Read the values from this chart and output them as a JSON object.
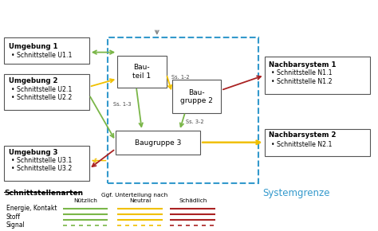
{
  "bg_color": "#ffffff",
  "system_border_color": "#3399cc",
  "systemgrenze_label": "Systemgrenze",
  "systemgrenze_color": "#3399cc",
  "title_legend": "Schnittstellenarten",
  "legend_subtitle": "Ggf. Unterteilung nach",
  "legend_col1": "Nützlich",
  "legend_col2": "Neutral",
  "legend_col3": "Schädlich",
  "legend_rows": [
    "Energie, Kontakt",
    "Stoff",
    "Signal"
  ],
  "green": "#7ab648",
  "yellow": "#f0c000",
  "red": "#aa2222",
  "gray": "#888888",
  "dark": "#444444"
}
